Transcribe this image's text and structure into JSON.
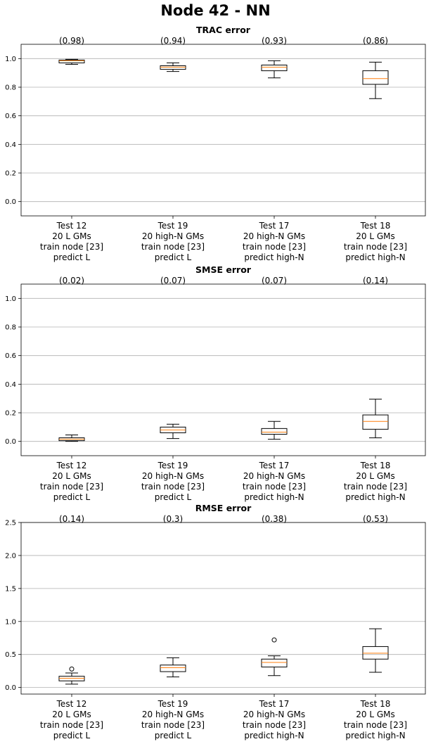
{
  "figure": {
    "title": "Node 42 - NN"
  },
  "chart_data": [
    {
      "type": "box",
      "title": "TRAC error",
      "ylim": [
        -0.1,
        1.1
      ],
      "yticks": [
        "0.0",
        "0.2",
        "0.4",
        "0.6",
        "0.8",
        "1.0"
      ],
      "ytick_values": [
        0.0,
        0.2,
        0.4,
        0.6,
        0.8,
        1.0
      ],
      "grid": "horizontal",
      "categories": [
        [
          "Test 12",
          "20 L GMs",
          "train node [23]",
          "predict L"
        ],
        [
          "Test 19",
          "20 high-N GMs",
          "train node [23]",
          "predict L"
        ],
        [
          "Test 17",
          "20 high-N GMs",
          "train node [23]",
          "predict high-N"
        ],
        [
          "Test 18",
          "20 L GMs",
          "train node [23]",
          "predict high-N"
        ]
      ],
      "annotations": [
        "(0.98)",
        "(0.94)",
        "(0.93)",
        "(0.86)"
      ],
      "boxes": [
        {
          "whislo": 0.96,
          "q1": 0.97,
          "med": 0.985,
          "q3": 0.99,
          "whishi": 0.995,
          "fliers": []
        },
        {
          "whislo": 0.91,
          "q1": 0.925,
          "med": 0.94,
          "q3": 0.95,
          "whishi": 0.97,
          "fliers": []
        },
        {
          "whislo": 0.865,
          "q1": 0.915,
          "med": 0.94,
          "q3": 0.955,
          "whishi": 0.985,
          "fliers": []
        },
        {
          "whislo": 0.72,
          "q1": 0.82,
          "med": 0.86,
          "q3": 0.915,
          "whishi": 0.975,
          "fliers": []
        }
      ]
    },
    {
      "type": "box",
      "title": "SMSE error",
      "ylim": [
        -0.1,
        1.1
      ],
      "yticks": [
        "0.0",
        "0.2",
        "0.4",
        "0.6",
        "0.8",
        "1.0"
      ],
      "ytick_values": [
        0.0,
        0.2,
        0.4,
        0.6,
        0.8,
        1.0
      ],
      "grid": "horizontal",
      "categories": [
        [
          "Test 12",
          "20 L GMs",
          "train node [23]",
          "predict L"
        ],
        [
          "Test 19",
          "20 high-N GMs",
          "train node [23]",
          "predict L"
        ],
        [
          "Test 17",
          "20 high-N GMs",
          "train node [23]",
          "predict high-N"
        ],
        [
          "Test 18",
          "20 L GMs",
          "train node [23]",
          "predict high-N"
        ]
      ],
      "annotations": [
        "(0.02)",
        "(0.07)",
        "(0.07)",
        "(0.14)"
      ],
      "boxes": [
        {
          "whislo": 0.0,
          "q1": 0.005,
          "med": 0.015,
          "q3": 0.025,
          "whishi": 0.045,
          "fliers": []
        },
        {
          "whislo": 0.02,
          "q1": 0.06,
          "med": 0.08,
          "q3": 0.1,
          "whishi": 0.12,
          "fliers": []
        },
        {
          "whislo": 0.015,
          "q1": 0.05,
          "med": 0.065,
          "q3": 0.09,
          "whishi": 0.14,
          "fliers": []
        },
        {
          "whislo": 0.025,
          "q1": 0.085,
          "med": 0.14,
          "q3": 0.185,
          "whishi": 0.295,
          "fliers": []
        }
      ]
    },
    {
      "type": "box",
      "title": "RMSE error",
      "ylim": [
        -0.1,
        2.5
      ],
      "yticks": [
        "0.0",
        "0.5",
        "1.0",
        "1.5",
        "2.0",
        "2.5"
      ],
      "ytick_values": [
        0.0,
        0.5,
        1.0,
        1.5,
        2.0,
        2.5
      ],
      "grid": "horizontal",
      "categories": [
        [
          "Test 12",
          "20 L GMs",
          "train node [23]",
          "predict L"
        ],
        [
          "Test 19",
          "20 high-N GMs",
          "train node [23]",
          "predict L"
        ],
        [
          "Test 17",
          "20 high-N GMs",
          "train node [23]",
          "predict high-N"
        ],
        [
          "Test 18",
          "20 L GMs",
          "train node [23]",
          "predict high-N"
        ]
      ],
      "annotations": [
        "(0.14)",
        "(0.3)",
        "(0.38)",
        "(0.53)"
      ],
      "boxes": [
        {
          "whislo": 0.05,
          "q1": 0.1,
          "med": 0.14,
          "q3": 0.17,
          "whishi": 0.22,
          "fliers": [
            0.28
          ]
        },
        {
          "whislo": 0.16,
          "q1": 0.24,
          "med": 0.3,
          "q3": 0.34,
          "whishi": 0.45,
          "fliers": []
        },
        {
          "whislo": 0.18,
          "q1": 0.31,
          "med": 0.38,
          "q3": 0.43,
          "whishi": 0.48,
          "fliers": [
            0.72
          ]
        },
        {
          "whislo": 0.23,
          "q1": 0.43,
          "med": 0.52,
          "q3": 0.62,
          "whishi": 0.89,
          "fliers": []
        }
      ]
    }
  ],
  "colors": {
    "median": "#ff7f0e",
    "grid": "#b0b0b0",
    "box": "#000000"
  }
}
